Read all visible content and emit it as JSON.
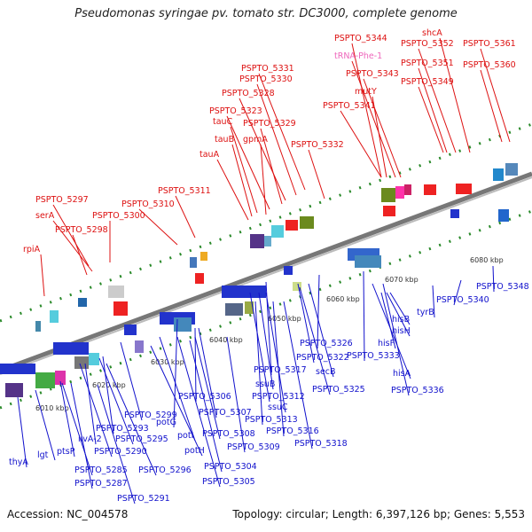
{
  "title": "Pseudomonas syringae pv. tomato str. DC3000, complete genome",
  "footer": {
    "accession": "Accession: NC_004578",
    "stats": "Topology: circular; Length: 6,397,126 bp; Genes: 5,553"
  },
  "colors": {
    "forward_label": "#dd1111",
    "reverse_label": "#1111cc",
    "trna_label": "#ee66bb",
    "backbone": "#888888"
  },
  "scale_labels": [
    "6010 kbp",
    "6020 kbp",
    "6030 kbp",
    "6040 kbp",
    "6050 kbp",
    "6060 kbp",
    "6070 kbp",
    "6080 kbp"
  ],
  "top_labels": [
    "PSPTO_5344",
    "tRNA-Phe-1",
    "PSPTO_5343",
    "mutY",
    "PSPTO_5341",
    "shcA",
    "PSPTO_5352",
    "PSPTO_5361",
    "PSPTO_5351",
    "PSPTO_5360",
    "PSPTO_5349",
    "PSPTO_5331",
    "PSPTO_5330",
    "PSPTO_5328",
    "PSPTO_5323",
    "tauC",
    "PSPTO_5329",
    "tauB",
    "gpmA",
    "PSPTO_5332",
    "tauA",
    "PSPTO_5311",
    "PSPTO_5297",
    "PSPTO_5310",
    "serA",
    "PSPTO_5300",
    "PSPTO_5298",
    "rpiA"
  ],
  "bottom_labels": [
    "PSPTO_5348",
    "PSPTO_5340",
    "tyrB",
    "hisB",
    "hisH",
    "hisF",
    "PSPTO_5333",
    "hisA",
    "PSPTO_5336",
    "PSPTO_5326",
    "PSPTO_5322",
    "secB",
    "PSPTO_5325",
    "PSPTO_5317",
    "ssuB",
    "PSPTO_5312",
    "ssuC",
    "PSPTO_5313",
    "PSPTO_5316",
    "PSPTO_5318",
    "PSPTO_5306",
    "PSPTO_5307",
    "potG",
    "PSPTO_5308",
    "potI",
    "PSPTO_5309",
    "potH",
    "PSPTO_5304",
    "PSPTO_5305",
    "PSPTO_5299",
    "PSPTO_5293",
    "PSPTO_5295",
    "ilvA-2",
    "PSPTO_5290",
    "PSPTO_5296",
    "ptsP",
    "PSPTO_5285",
    "PSPTO_5287",
    "PSPTO_5291",
    "lgt",
    "thyA"
  ]
}
